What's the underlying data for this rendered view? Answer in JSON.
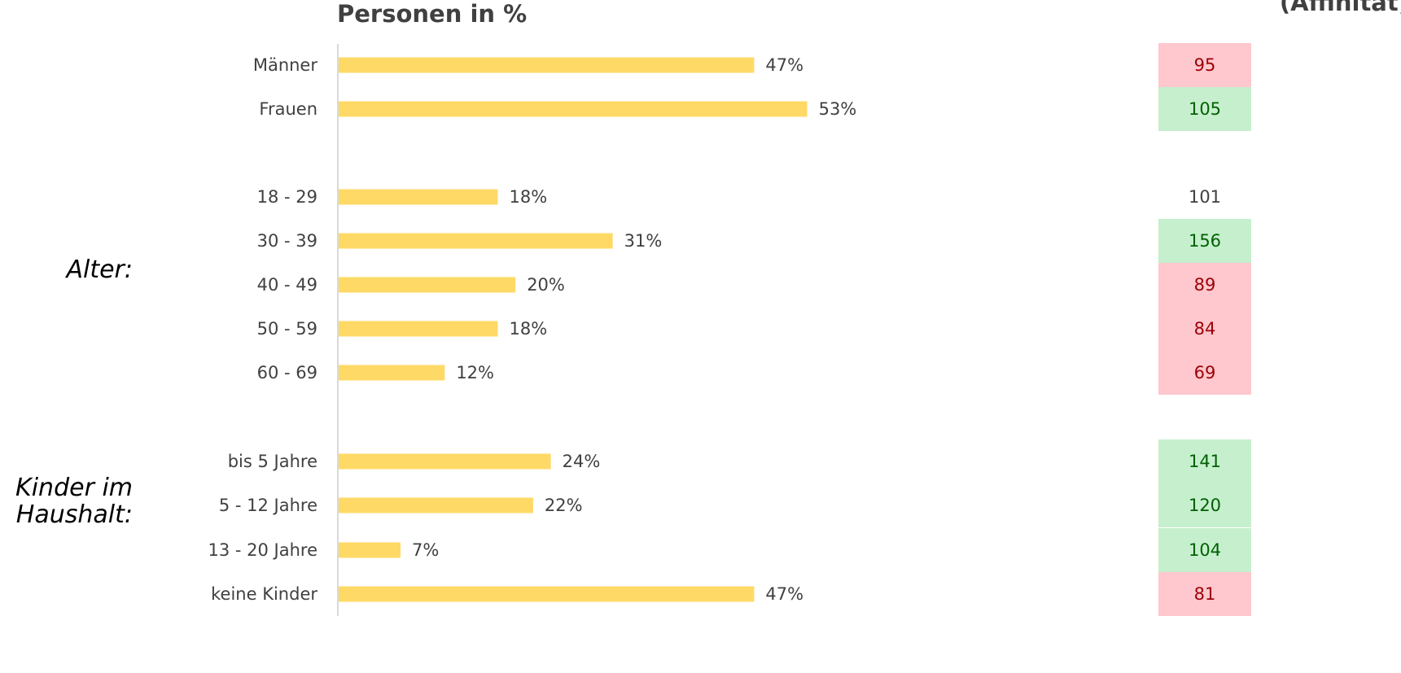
{
  "chart_data": {
    "type": "bar",
    "orientation": "horizontal",
    "title": "Personen in %",
    "affinity_title": "(Affinität)",
    "xlim": [
      0,
      100
    ],
    "unit": "%",
    "categories": [
      "Männer",
      "Frauen",
      "18 - 29",
      "30 - 39",
      "40 - 49",
      "50 - 59",
      "60 - 69",
      "bis 5 Jahre",
      "5 - 12 Jahre",
      "13 - 20 Jahre",
      "keine Kinder"
    ],
    "values": [
      47,
      53,
      18,
      31,
      20,
      18,
      12,
      24,
      22,
      7,
      47
    ],
    "value_labels": [
      "47%",
      "53%",
      "18%",
      "31%",
      "20%",
      "18%",
      "12%",
      "24%",
      "22%",
      "7%",
      "47%"
    ],
    "affinity": [
      95,
      105,
      101,
      156,
      89,
      84,
      69,
      141,
      120,
      104,
      81
    ],
    "affinity_status": [
      "low",
      "high",
      "neutral",
      "high",
      "low",
      "low",
      "low",
      "high",
      "high",
      "high",
      "low"
    ],
    "groups": [
      {
        "label": "Alter:",
        "categories": [
          "18 - 29",
          "30 - 39",
          "40 - 49",
          "50 - 59",
          "60 - 69"
        ]
      },
      {
        "label": "Kinder im Haushalt:",
        "lines": [
          "Kinder im",
          "Haushalt:"
        ],
        "categories": [
          "bis 5 Jahre",
          "5 - 12 Jahre",
          "13 - 20 Jahre",
          "keine Kinder"
        ]
      }
    ],
    "colors": {
      "bar": "#FFD966",
      "axis": "#D9D9D9",
      "low_bg": "#FFC7CE",
      "low_text": "#9C0006",
      "high_bg": "#C6EFCE",
      "high_text": "#006100",
      "neutral_text": "#404040"
    }
  }
}
